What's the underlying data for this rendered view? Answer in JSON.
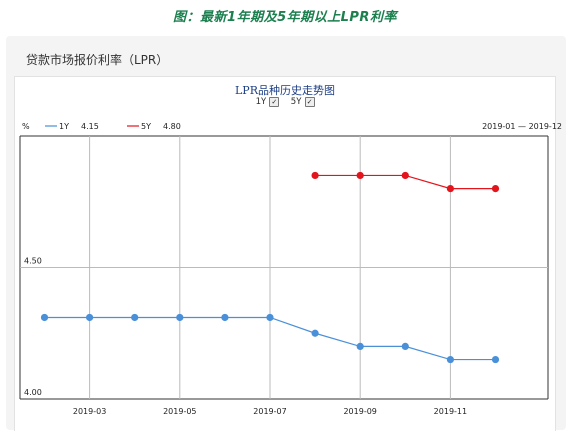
{
  "caption": "图：最新1年期及5年期以上LPR利率",
  "card": {
    "title": "贷款市场报价利率（LPR）"
  },
  "toggles": [
    {
      "label": "1Y",
      "checked": true
    },
    {
      "label": "5Y",
      "checked": true
    }
  ],
  "chart_data": {
    "type": "line",
    "title": "LPR品种历史走势图",
    "ylabel": "%",
    "ylim": [
      4.0,
      5.0
    ],
    "yticks": [
      "4.00",
      "4.50"
    ],
    "date_range": "2019-01 — 2019-12",
    "x": [
      "2019-02",
      "2019-03",
      "2019-04",
      "2019-05",
      "2019-06",
      "2019-07",
      "2019-08",
      "2019-09",
      "2019-10",
      "2019-11",
      "2019-12"
    ],
    "xtick_labels": [
      "2019-03",
      "2019-05",
      "2019-07",
      "2019-09",
      "2019-11"
    ],
    "grid": true,
    "legend_position": "top-left",
    "series": [
      {
        "name": "1Y",
        "latest_label": "4.15",
        "color": "#4a90d9",
        "values": [
          4.31,
          4.31,
          4.31,
          4.31,
          4.31,
          4.31,
          4.25,
          4.2,
          4.2,
          4.15,
          4.15
        ]
      },
      {
        "name": "5Y",
        "latest_label": "4.80",
        "color": "#e3141c",
        "values": [
          null,
          null,
          null,
          null,
          null,
          null,
          4.85,
          4.85,
          4.85,
          4.8,
          4.8
        ]
      }
    ]
  }
}
